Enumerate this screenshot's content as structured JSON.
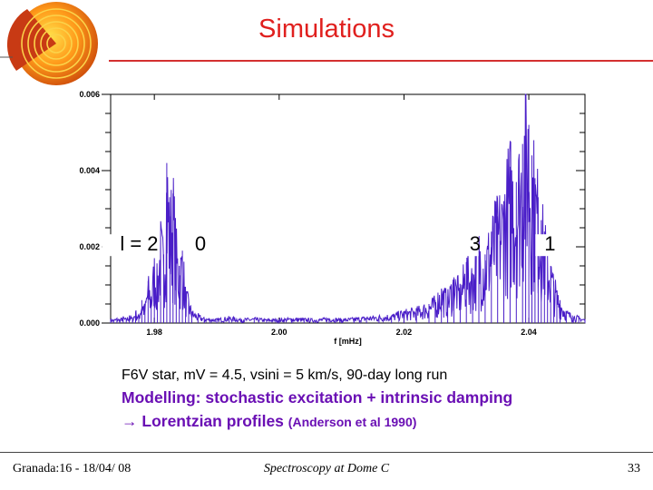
{
  "slide": {
    "title": "Simulations",
    "notes": {
      "line1": "F6V star, mV = 4.5, vsini = 5 km/s, 90-day long run",
      "line2": "Modelling: stochastic excitation + intrinsic damping",
      "line3_arrow": "→",
      "line3": "Lorentzian profiles",
      "line3_cite": "(Anderson et al 1990)"
    },
    "footer": {
      "left": "Granada:16 - 18/04/ 08",
      "center": "Spectroscopy at Dome C",
      "right": "33"
    }
  },
  "colors": {
    "title": "#e0201e",
    "accent": "#6a0fb4",
    "spectrum": "#4a1ec8"
  },
  "icons": {
    "logo": "star-cutaway-logo"
  },
  "chart_data": {
    "type": "line",
    "title": "",
    "xlabel": "f [mHz]",
    "ylabel": "",
    "xlim": [
      1.973,
      2.049
    ],
    "ylim": [
      0.0,
      0.006
    ],
    "x_ticks": [
      1.98,
      2.0,
      2.02,
      2.04
    ],
    "x_tick_labels": [
      "1.98",
      "2.00",
      "2.02",
      "2.04"
    ],
    "y_ticks": [
      0.0,
      0.002,
      0.004,
      0.006
    ],
    "y_tick_labels": [
      "0.000",
      "0.002",
      "0.004",
      "0.006"
    ],
    "grid": false,
    "series": [
      {
        "x": [
          1.973,
          1.9735,
          1.974,
          1.9745,
          1.975,
          1.9755,
          1.976,
          1.9765,
          1.977,
          1.9775,
          1.978,
          1.9785,
          1.979,
          1.9795,
          1.98,
          1.9805,
          1.981,
          1.9815,
          1.982,
          1.9825,
          1.983,
          1.9835,
          1.984,
          1.9845,
          1.985,
          1.9855,
          1.986,
          1.987,
          1.988,
          1.99,
          1.992,
          1.994,
          1.996,
          1.998,
          2.0,
          2.002,
          2.004,
          2.006,
          2.008,
          2.01,
          2.012,
          2.014,
          2.016,
          2.018,
          2.02,
          2.022,
          2.024,
          2.025,
          2.026,
          2.027,
          2.028,
          2.029,
          2.03,
          2.031,
          2.032,
          2.033,
          2.034,
          2.035,
          2.036,
          2.037,
          2.038,
          2.039,
          2.0395,
          2.04,
          2.0405,
          2.041,
          2.0415,
          2.042,
          2.0425,
          2.043,
          2.0435,
          2.044,
          2.0445,
          2.045,
          2.046,
          2.047,
          2.048,
          2.049
        ],
        "y": [
          0.0001,
          8e-05,
          0.00012,
          9e-05,
          0.00015,
          0.0001,
          0.0002,
          0.00012,
          0.0003,
          0.00018,
          0.0006,
          0.0004,
          0.0011,
          0.0007,
          0.0016,
          0.0012,
          0.0023,
          0.0018,
          0.0042,
          0.0028,
          0.0034,
          0.0021,
          0.0015,
          0.0019,
          0.0008,
          0.0006,
          0.0003,
          0.0002,
          0.00012,
          0.0001,
          0.00015,
          0.0001,
          0.00012,
          9e-05,
          0.0001,
          0.00012,
          0.00011,
          9e-05,
          0.00013,
          0.0001,
          0.00012,
          0.00015,
          0.00018,
          0.0002,
          0.0003,
          0.00035,
          0.0005,
          0.0006,
          0.0009,
          0.0007,
          0.0012,
          0.0009,
          0.0016,
          0.0013,
          0.0021,
          0.0018,
          0.0024,
          0.0028,
          0.0032,
          0.0041,
          0.0037,
          0.0047,
          0.0059,
          0.0052,
          0.0044,
          0.0038,
          0.0033,
          0.0027,
          0.0024,
          0.0018,
          0.0015,
          0.0011,
          0.0008,
          0.0006,
          0.0003,
          0.0002,
          0.00015,
          0.0001
        ]
      }
    ],
    "annotations": [
      {
        "text": "l =  2",
        "x": 1.9745,
        "y": 0.0019
      },
      {
        "text": "0",
        "x": 1.9865,
        "y": 0.0019
      },
      {
        "text": "3",
        "x": 2.0305,
        "y": 0.0019
      },
      {
        "text": "1",
        "x": 2.0425,
        "y": 0.0019
      }
    ]
  }
}
